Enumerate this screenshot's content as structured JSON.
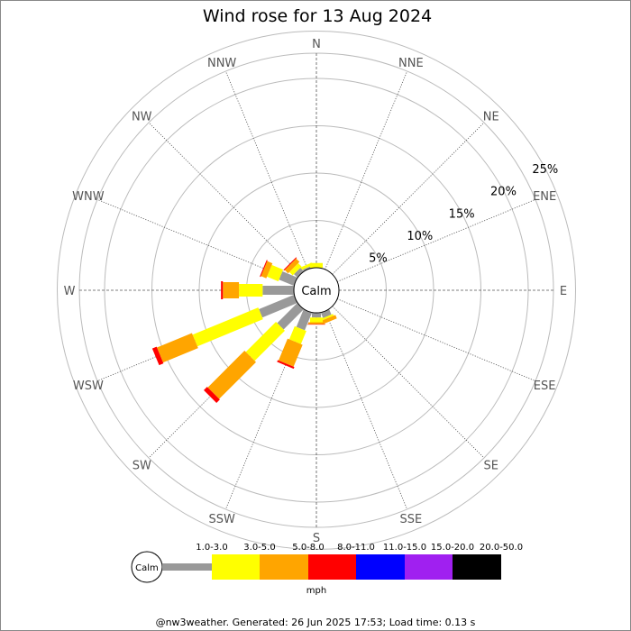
{
  "chart_data": {
    "type": "wind-rose",
    "title": "Wind rose for 13 Aug 2024",
    "calm_label": "Calm",
    "units": "mph",
    "directions": [
      "N",
      "NNE",
      "NE",
      "ENE",
      "E",
      "ESE",
      "SE",
      "SSE",
      "S",
      "SSW",
      "SW",
      "WSW",
      "W",
      "WNW",
      "NW",
      "NNW"
    ],
    "rings_percent": [
      5,
      10,
      15,
      20,
      25
    ],
    "ring_labels": [
      "5%",
      "10%",
      "15%",
      "20%",
      "25%"
    ],
    "speed_bins": [
      {
        "label": "1.0-3.0",
        "color": "#999999"
      },
      {
        "label": "3.0-5.0",
        "color": "#ffff00"
      },
      {
        "label": "5.0-8.0",
        "color": "#ffa500"
      },
      {
        "label": "8.0-11.0",
        "color": "#ff0000"
      },
      {
        "label": "11.0-15.0",
        "color": "#0000ff"
      },
      {
        "label": "15.0-20.0",
        "color": "#a020f0"
      },
      {
        "label": "20.0-50.0",
        "color": "#000000"
      }
    ],
    "series_cumulative_percent": {
      "NNW": [
        0.2,
        0.5
      ],
      "SSE": [
        0.6,
        0.8,
        1.2
      ],
      "S": [
        0.5,
        1.0,
        1.2,
        1.25
      ],
      "SSW": [
        2.0,
        3.5,
        6.0,
        6.2
      ],
      "SW": [
        3.0,
        7.5,
        13.0,
        13.5
      ],
      "WSW": [
        4.0,
        11.5,
        15.5,
        16.0
      ],
      "W": [
        3.3,
        5.8,
        7.5,
        7.7
      ],
      "WNW": [
        1.7,
        3.0,
        3.6,
        3.7
      ],
      "NW": [
        0.5,
        1.0,
        1.5,
        1.6
      ],
      "N": [
        0.0,
        0.5
      ]
    }
  },
  "footer": "@nw3weather. Generated: 26 Jun 2025 17:53; Load time: 0.13 s"
}
